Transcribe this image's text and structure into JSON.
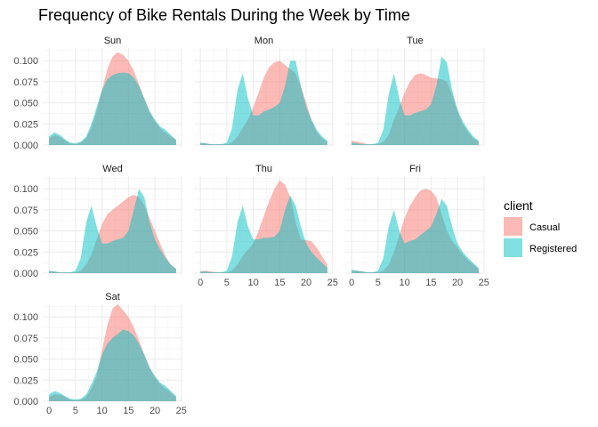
{
  "chart_data": {
    "type": "area",
    "title": "Frequency of Bike Rentals During the Week by Time",
    "xlabel": "",
    "ylabel": "",
    "xlim": [
      0,
      24
    ],
    "ylim": [
      0,
      0.115
    ],
    "x_ticks": [
      0,
      5,
      10,
      15,
      20,
      25
    ],
    "y_ticks": [
      0,
      0.025,
      0.05,
      0.075,
      0.1
    ],
    "y_tick_labels": [
      "0.000",
      "0.025",
      "0.050",
      "0.075",
      "0.100"
    ],
    "grid": true,
    "legend": {
      "title": "client",
      "position": "right",
      "entries": [
        {
          "name": "Casual",
          "color": "#F8766D"
        },
        {
          "name": "Registered",
          "color": "#00BFC4"
        }
      ]
    },
    "x": [
      0,
      1,
      2,
      3,
      4,
      5,
      6,
      7,
      8,
      9,
      10,
      11,
      12,
      13,
      14,
      15,
      16,
      17,
      18,
      19,
      20,
      21,
      22,
      23,
      24
    ],
    "panels": [
      {
        "name": "Sun",
        "series": [
          {
            "name": "Casual",
            "values": [
              0.008,
              0.012,
              0.01,
              0.005,
              0.002,
              0.001,
              0.003,
              0.008,
              0.02,
              0.04,
              0.065,
              0.09,
              0.105,
              0.11,
              0.107,
              0.1,
              0.088,
              0.072,
              0.055,
              0.04,
              0.028,
              0.02,
              0.015,
              0.01,
              0.006
            ]
          },
          {
            "name": "Registered",
            "values": [
              0.01,
              0.015,
              0.012,
              0.007,
              0.003,
              0.002,
              0.004,
              0.01,
              0.025,
              0.045,
              0.065,
              0.078,
              0.083,
              0.085,
              0.086,
              0.085,
              0.08,
              0.07,
              0.055,
              0.04,
              0.03,
              0.022,
              0.018,
              0.012,
              0.006
            ]
          }
        ]
      },
      {
        "name": "Mon",
        "series": [
          {
            "name": "Casual",
            "values": [
              0.002,
              0.002,
              0.001,
              0.001,
              0.001,
              0.001,
              0.003,
              0.01,
              0.02,
              0.03,
              0.045,
              0.062,
              0.08,
              0.092,
              0.098,
              0.1,
              0.095,
              0.09,
              0.085,
              0.07,
              0.05,
              0.03,
              0.015,
              0.008,
              0.004
            ]
          },
          {
            "name": "Registered",
            "values": [
              0.003,
              0.002,
              0.001,
              0.001,
              0.001,
              0.003,
              0.02,
              0.065,
              0.085,
              0.055,
              0.035,
              0.035,
              0.04,
              0.042,
              0.045,
              0.05,
              0.07,
              0.1,
              0.1,
              0.07,
              0.045,
              0.03,
              0.018,
              0.01,
              0.005
            ]
          }
        ]
      },
      {
        "name": "Tue",
        "series": [
          {
            "name": "Casual",
            "values": [
              0.005,
              0.004,
              0.003,
              0.001,
              0.001,
              0.001,
              0.004,
              0.012,
              0.03,
              0.045,
              0.062,
              0.075,
              0.083,
              0.085,
              0.083,
              0.08,
              0.079,
              0.078,
              0.075,
              0.06,
              0.04,
              0.025,
              0.015,
              0.008,
              0.004
            ]
          },
          {
            "name": "Registered",
            "values": [
              0.003,
              0.002,
              0.001,
              0.001,
              0.001,
              0.003,
              0.018,
              0.06,
              0.085,
              0.055,
              0.035,
              0.035,
              0.038,
              0.04,
              0.042,
              0.048,
              0.07,
              0.105,
              0.098,
              0.065,
              0.042,
              0.028,
              0.018,
              0.01,
              0.005
            ]
          }
        ]
      },
      {
        "name": "Wed",
        "series": [
          {
            "name": "Casual",
            "values": [
              0.002,
              0.002,
              0.001,
              0.001,
              0.001,
              0.001,
              0.003,
              0.01,
              0.022,
              0.04,
              0.058,
              0.07,
              0.075,
              0.08,
              0.085,
              0.09,
              0.093,
              0.09,
              0.08,
              0.065,
              0.05,
              0.035,
              0.02,
              0.01,
              0.005
            ]
          },
          {
            "name": "Registered",
            "values": [
              0.003,
              0.002,
              0.001,
              0.001,
              0.001,
              0.003,
              0.018,
              0.06,
              0.08,
              0.055,
              0.035,
              0.035,
              0.038,
              0.04,
              0.042,
              0.05,
              0.075,
              0.1,
              0.09,
              0.06,
              0.04,
              0.028,
              0.018,
              0.01,
              0.005
            ]
          }
        ]
      },
      {
        "name": "Thu",
        "series": [
          {
            "name": "Casual",
            "values": [
              0.002,
              0.003,
              0.002,
              0.001,
              0.001,
              0.001,
              0.003,
              0.01,
              0.02,
              0.028,
              0.035,
              0.05,
              0.068,
              0.085,
              0.1,
              0.11,
              0.105,
              0.09,
              0.06,
              0.04,
              0.039,
              0.038,
              0.03,
              0.02,
              0.01
            ]
          },
          {
            "name": "Registered",
            "values": [
              0.002,
              0.002,
              0.001,
              0.001,
              0.001,
              0.003,
              0.02,
              0.06,
              0.08,
              0.055,
              0.04,
              0.04,
              0.042,
              0.042,
              0.043,
              0.05,
              0.075,
              0.092,
              0.08,
              0.055,
              0.035,
              0.025,
              0.018,
              0.012,
              0.006
            ]
          }
        ]
      },
      {
        "name": "Fri",
        "series": [
          {
            "name": "Casual",
            "values": [
              0.003,
              0.003,
              0.002,
              0.001,
              0.001,
              0.001,
              0.003,
              0.01,
              0.025,
              0.045,
              0.065,
              0.08,
              0.09,
              0.098,
              0.1,
              0.098,
              0.09,
              0.07,
              0.05,
              0.038,
              0.03,
              0.022,
              0.015,
              0.01,
              0.005
            ]
          },
          {
            "name": "Registered",
            "values": [
              0.004,
              0.003,
              0.002,
              0.001,
              0.001,
              0.003,
              0.018,
              0.055,
              0.075,
              0.05,
              0.035,
              0.038,
              0.04,
              0.045,
              0.05,
              0.055,
              0.07,
              0.088,
              0.08,
              0.055,
              0.035,
              0.025,
              0.018,
              0.012,
              0.006
            ]
          }
        ]
      },
      {
        "name": "Sat",
        "series": [
          {
            "name": "Casual",
            "values": [
              0.005,
              0.008,
              0.008,
              0.005,
              0.002,
              0.001,
              0.002,
              0.005,
              0.015,
              0.03,
              0.06,
              0.09,
              0.11,
              0.115,
              0.108,
              0.1,
              0.088,
              0.072,
              0.055,
              0.04,
              0.028,
              0.02,
              0.015,
              0.01,
              0.005
            ]
          },
          {
            "name": "Registered",
            "values": [
              0.008,
              0.012,
              0.01,
              0.006,
              0.003,
              0.002,
              0.003,
              0.008,
              0.02,
              0.035,
              0.055,
              0.068,
              0.075,
              0.08,
              0.085,
              0.083,
              0.078,
              0.068,
              0.055,
              0.04,
              0.03,
              0.022,
              0.018,
              0.012,
              0.006
            ]
          }
        ]
      }
    ]
  }
}
